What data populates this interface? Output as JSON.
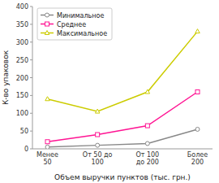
{
  "chart_data": {
    "type": "line",
    "categories": [
      "Менее\n50",
      "От 50 до\n100",
      "От 100\nдо 200",
      "Более\n200"
    ],
    "series": [
      {
        "name": "Минимальное",
        "color": "#888888",
        "marker": "circle",
        "values": [
          5,
          10,
          15,
          55
        ]
      },
      {
        "name": "Среднее",
        "color": "#ff1493",
        "marker": "square",
        "values": [
          20,
          40,
          65,
          160
        ]
      },
      {
        "name": "Максимальное",
        "color": "#cccc00",
        "marker": "triangle",
        "values": [
          140,
          105,
          160,
          330
        ]
      }
    ],
    "xlabel": "Объем выручки пунктов (тыс. грн.)",
    "ylabel": "К-во упаковок",
    "ylim": [
      0,
      400
    ],
    "yticks": [
      0,
      50,
      100,
      150,
      200,
      250,
      300,
      350,
      400
    ],
    "grid": false,
    "legend": "upper left"
  }
}
